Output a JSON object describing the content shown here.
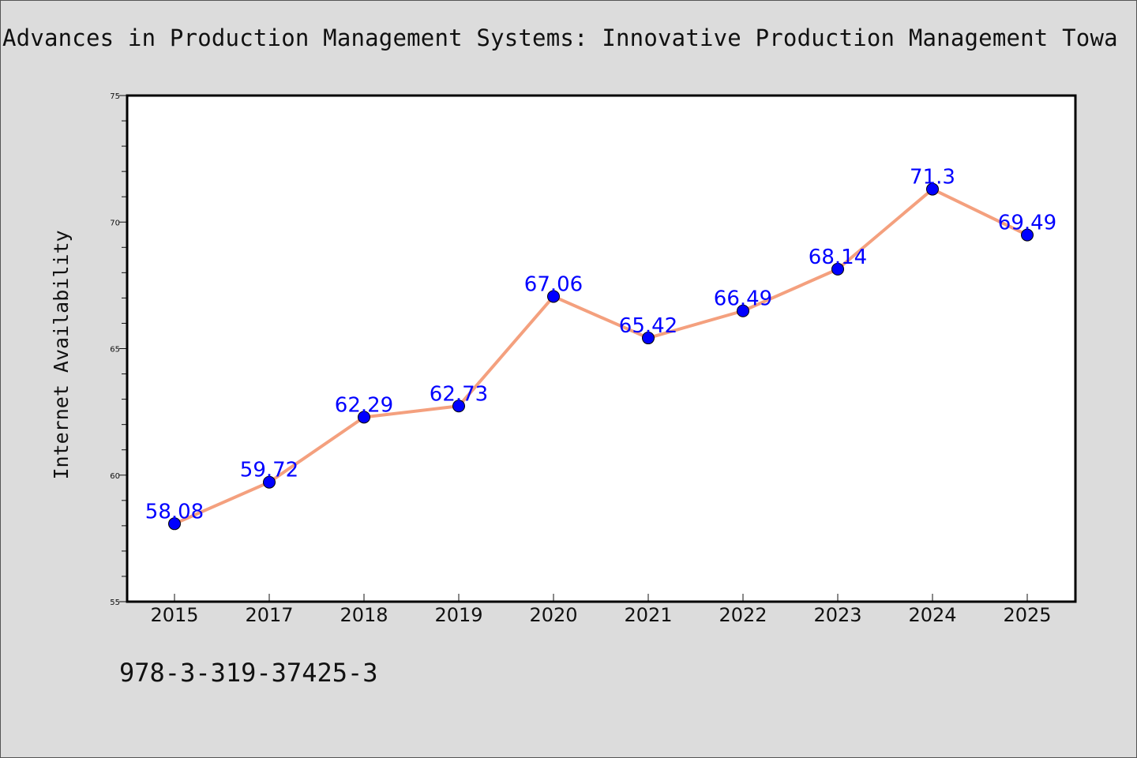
{
  "title": "Advances in Production Management Systems: Innovative Production Management Towa",
  "footnote": "978-3-319-37425-3",
  "colors": {
    "background": "#dcdcdc",
    "plot_background": "#ffffff",
    "line": "#f4a07e",
    "marker": "#0000ff",
    "data_label": "#0000ff"
  },
  "chart_data": {
    "type": "line",
    "title": "Advances in Production Management Systems: Innovative Production Management Towa",
    "xlabel": "",
    "ylabel": "Internet Availability",
    "categories": [
      "2015",
      "2017",
      "2018",
      "2019",
      "2020",
      "2021",
      "2022",
      "2023",
      "2024",
      "2025"
    ],
    "series": [
      {
        "values": [
          58.08,
          59.72,
          62.29,
          62.73,
          67.06,
          65.42,
          66.49,
          68.14,
          71.3,
          69.49
        ],
        "labels": [
          "58.08",
          "59.72",
          "62.29",
          "62.73",
          "67.06",
          "65.42",
          "66.49",
          "68.14",
          "71.3",
          "69.49"
        ]
      }
    ],
    "ylim": [
      55,
      75
    ],
    "yticks": [
      55,
      60,
      65,
      70,
      75
    ],
    "yticks_minor_step": 1,
    "grid": false,
    "legend": "none"
  }
}
